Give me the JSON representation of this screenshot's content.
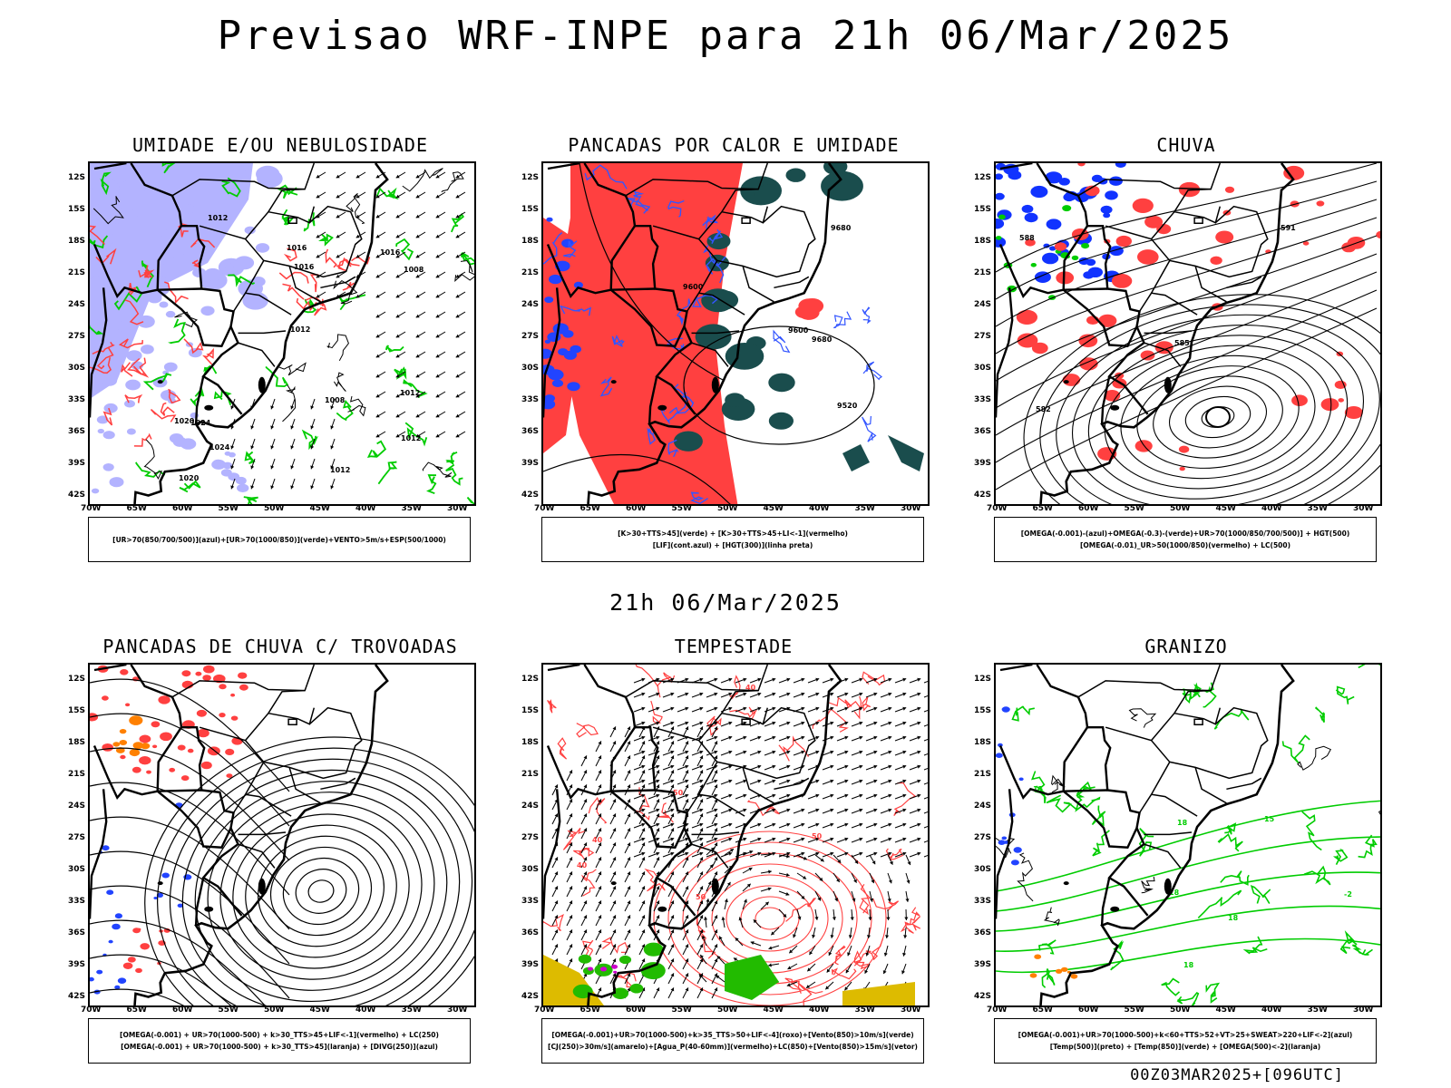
{
  "title": "Previsao WRF-INPE  para 21h 06/Mar/2025",
  "mid_title": "21h 06/Mar/2025",
  "footer": "00Z03MAR2025+[096UTC]",
  "chart_data": [
    {
      "type": "map",
      "title": "UMIDADE E/OU NEBULOSIDADE",
      "legend": [
        "[UR>70(850/700/500)](azul)+[UR>70(1000/850)](verde)+VENTO>5m/s+ESP(500/1000)"
      ],
      "lat_labels": [
        "12S",
        "15S",
        "18S",
        "21S",
        "24S",
        "27S",
        "30S",
        "33S",
        "36S",
        "39S",
        "42S"
      ],
      "lon_labels": [
        "70W",
        "65W",
        "60W",
        "55W",
        "50W",
        "45W",
        "40W",
        "35W",
        "30W"
      ],
      "contour_labels": [
        "1012",
        "1012",
        "1012",
        "1016",
        "1016",
        "1016",
        "1020",
        "1024",
        "1008",
        "1008",
        "1012",
        "1012",
        "1020",
        "1024"
      ]
    },
    {
      "type": "map",
      "title": "PANCADAS POR CALOR E UMIDADE",
      "legend": [
        "[K>30+TTS>45](verde) + [K>30+TTS>45+LI<-1](vermelho)",
        "[LIF](cont.azul) + [HGT(300)](linha preta)"
      ],
      "lat_labels": [
        "12S",
        "15S",
        "18S",
        "21S",
        "24S",
        "27S",
        "30S",
        "33S",
        "36S",
        "39S",
        "42S"
      ],
      "lon_labels": [
        "70W",
        "65W",
        "60W",
        "55W",
        "50W",
        "45W",
        "40W",
        "35W",
        "30W"
      ],
      "contour_labels": [
        "9600",
        "9600",
        "9680",
        "9680",
        "9520"
      ]
    },
    {
      "type": "map",
      "title": "CHUVA",
      "legend": [
        "[OMEGA(-0.001)-(azul)+OMEGA(-0.3)-(verde)+UR>70(1000/850/700/500)] + HGT(500)",
        "[OMEGA(-0.01)_UR>50(1000/850)(vermelho) + LC(500)"
      ],
      "lat_labels": [
        "12S",
        "15S",
        "18S",
        "21S",
        "24S",
        "27S",
        "30S",
        "33S",
        "36S",
        "39S",
        "42S"
      ],
      "lon_labels": [
        "70W",
        "65W",
        "60W",
        "55W",
        "50W",
        "45W",
        "40W",
        "35W",
        "30W"
      ],
      "contour_labels": [
        "588",
        "585",
        "582",
        "591"
      ]
    },
    {
      "type": "map",
      "title": "PANCADAS DE CHUVA C/ TROVOADAS",
      "legend": [
        "[OMEGA(-0.001) + UR>70(1000-500) + k>30_TTS>45+LIF<-1](vermelho) + LC(250)",
        "[OMEGA(-0.001) + UR>70(1000-500) + k>30_TTS>45](laranja) + [DIVG(250)](azul)"
      ],
      "lat_labels": [
        "12S",
        "15S",
        "18S",
        "21S",
        "24S",
        "27S",
        "30S",
        "33S",
        "36S",
        "39S",
        "42S"
      ],
      "lon_labels": [
        "70W",
        "65W",
        "60W",
        "55W",
        "50W",
        "45W",
        "40W",
        "35W",
        "30W"
      ],
      "contour_labels": []
    },
    {
      "type": "map",
      "title": "TEMPESTADE",
      "legend": [
        "[OMEGA(-0.001)+UR>70(1000-500)+k>35_TTS>50+LIF<-4](roxo)+[Vento(850)>10m/s](verde)",
        "[CJ(250)>30m/s](amarelo)+[Agua_P(40-60mm)](vermelho)+LC(850)+[Vento(850)>15m/s](vetor)"
      ],
      "lat_labels": [
        "12S",
        "15S",
        "18S",
        "21S",
        "24S",
        "27S",
        "30S",
        "33S",
        "36S",
        "39S",
        "42S"
      ],
      "lon_labels": [
        "70W",
        "65W",
        "60W",
        "55W",
        "50W",
        "45W",
        "40W",
        "35W",
        "30W"
      ],
      "contour_labels": [
        "40",
        "40",
        "40",
        "50",
        "50",
        "50"
      ]
    },
    {
      "type": "map",
      "title": "GRANIZO",
      "legend": [
        "[OMEGA(-0.001)+UR>70(1000-500)+k<60+TTS>52+VT>25+SWEAT>220+LIF<-2](azul)",
        "[Temp(500)](preto) + [Temp(850)](verde) + [OMEGA(500)<-2](laranja)"
      ],
      "lat_labels": [
        "12S",
        "15S",
        "18S",
        "21S",
        "24S",
        "27S",
        "30S",
        "33S",
        "36S",
        "39S",
        "42S"
      ],
      "lon_labels": [
        "70W",
        "65W",
        "60W",
        "55W",
        "50W",
        "45W",
        "40W",
        "35W",
        "30W"
      ],
      "contour_labels": [
        "18",
        "18",
        "18",
        "18",
        "15",
        "15",
        "-2"
      ]
    }
  ],
  "colors": {
    "blue_area": "#b3b3ff",
    "green_line": "#00cc00",
    "red": "#ff4040",
    "dark_teal": "#1a4d4d",
    "blue_line": "#3355ff",
    "orange": "#ff8000",
    "yellow": "#ddbb00",
    "purple": "#cc00cc"
  }
}
